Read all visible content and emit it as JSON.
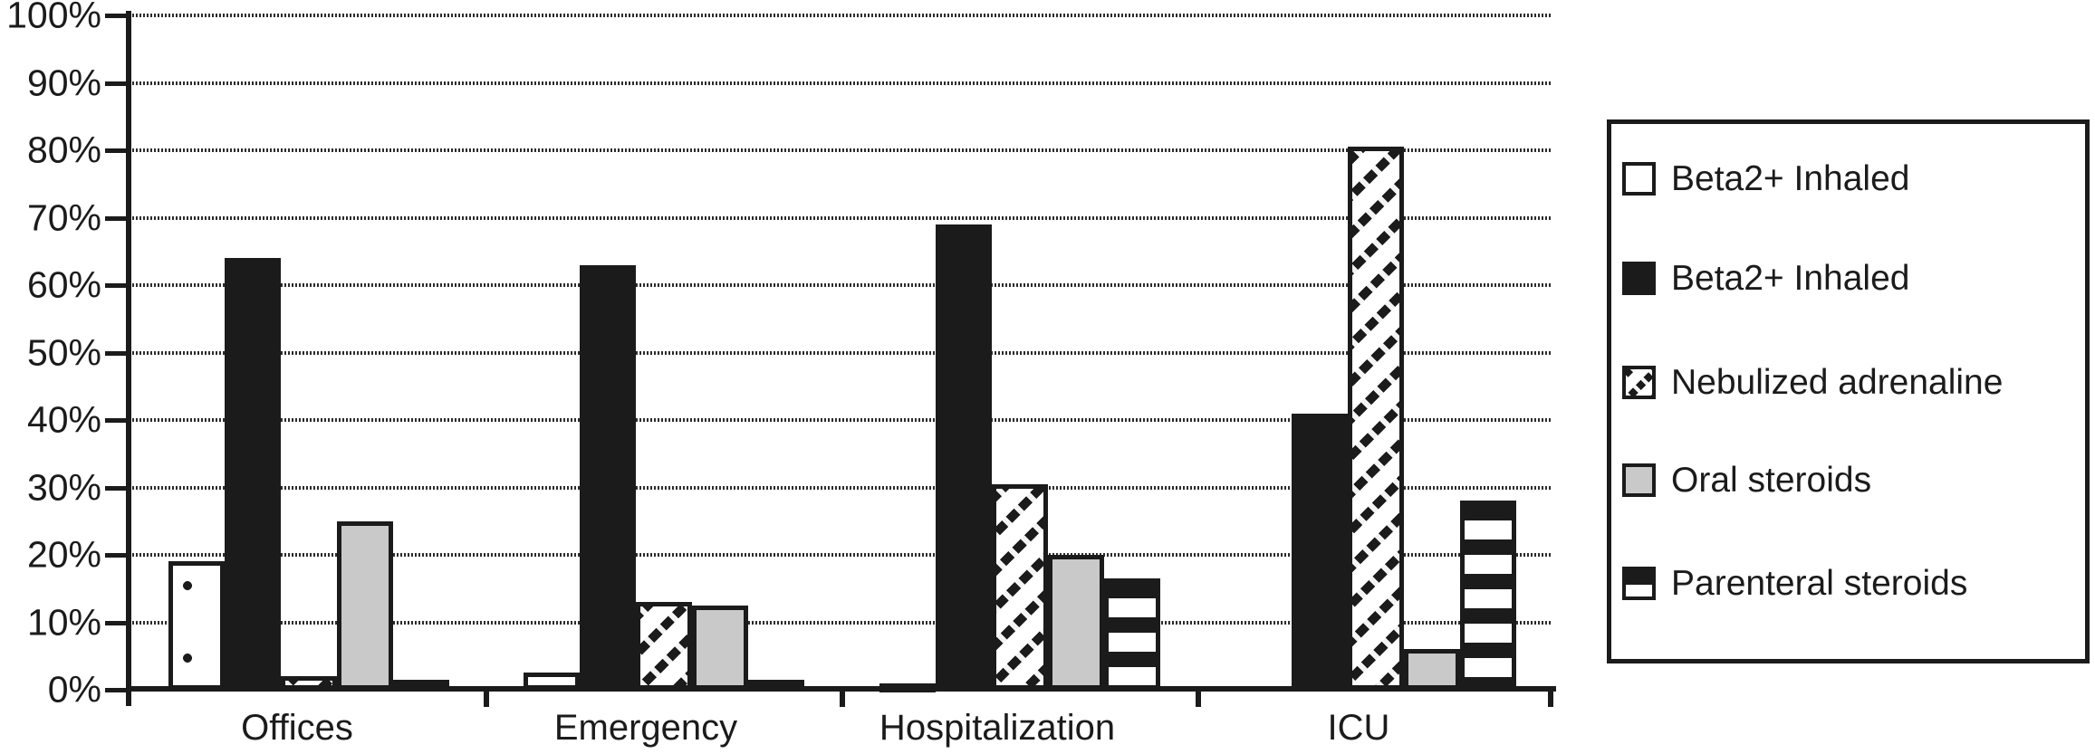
{
  "chart_data": {
    "type": "bar",
    "title": "",
    "xlabel": "",
    "ylabel": "",
    "categories": [
      "Offices",
      "Emergency",
      "Hospitalization",
      "ICU"
    ],
    "series": [
      {
        "name": "Beta2+ Inhaled",
        "pattern": "white-with-sparse-dots",
        "values": [
          19,
          2.5,
          1,
          0
        ]
      },
      {
        "name": "Beta2+ Inhaled",
        "pattern": "solid-black",
        "values": [
          64,
          63,
          69,
          41
        ]
      },
      {
        "name": "Nebulized adrenaline",
        "pattern": "diagonal-checker",
        "values": [
          2,
          13,
          30.5,
          80.5
        ]
      },
      {
        "name": "Oral steroids",
        "pattern": "solid-gray",
        "values": [
          25,
          12.5,
          20,
          6
        ]
      },
      {
        "name": "Parenteral steroids",
        "pattern": "horizontal-black-stripes",
        "values": [
          1.5,
          1.5,
          16.5,
          28
        ]
      }
    ],
    "y_ticks": [
      "0%",
      "10%",
      "20%",
      "30%",
      "40%",
      "50%",
      "60%",
      "70%",
      "80%",
      "90%",
      "100%"
    ],
    "ylim": [
      0,
      100
    ],
    "grid": "dotted-horizontal",
    "legend_position": "right"
  },
  "legend": {
    "items": [
      {
        "swatch": "white",
        "label": "Beta2+ Inhaled"
      },
      {
        "swatch": "black",
        "label": "Beta2+ Inhaled"
      },
      {
        "swatch": "diagonal-checker",
        "label": "Nebulized adrenaline"
      },
      {
        "swatch": "gray",
        "label": "Oral steroids"
      },
      {
        "swatch": "black-over-white",
        "label": "Parenteral steroids"
      }
    ]
  },
  "colors": {
    "ink": "#1b1b1b",
    "gray_fill": "#c9c9c9",
    "background": "#ffffff"
  }
}
